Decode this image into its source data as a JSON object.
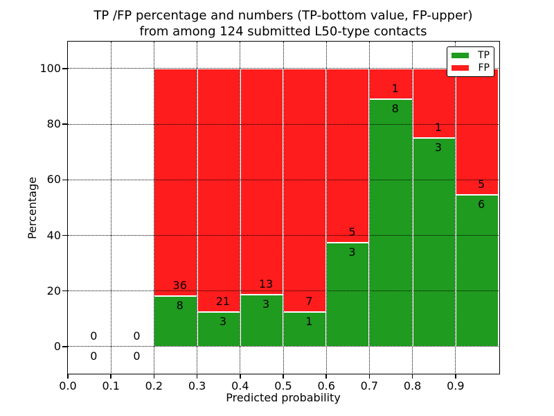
{
  "chart_data": {
    "type": "bar",
    "stacked": true,
    "title_line1": "TP /FP percentage and numbers (TP-bottom value, FP-upper)",
    "title_line2": "from among 124 submitted L50-type contacts",
    "xlabel": "Predicted probability",
    "ylabel": "Percentage",
    "xlim": [
      0.0,
      1.0
    ],
    "ylim": [
      -9.5,
      109.7
    ],
    "x_tick_values": [
      0.0,
      0.1,
      0.2,
      0.3,
      0.4,
      0.5,
      0.6,
      0.7,
      0.8,
      0.9
    ],
    "x_tick_labels": [
      "0.0",
      "0.1",
      "0.2",
      "0.3",
      "0.4",
      "0.5",
      "0.6",
      "0.7",
      "0.8",
      "0.9"
    ],
    "y_tick_values": [
      0,
      20,
      40,
      60,
      80,
      100
    ],
    "y_tick_labels": [
      "0",
      "20",
      "40",
      "60",
      "80",
      "100"
    ],
    "grid": "dotted-both-axes-drawn-over-bars",
    "legend_position": "upper-right",
    "legend": [
      {
        "label": "TP",
        "color": "#1f9b1f"
      },
      {
        "label": "FP",
        "color": "#ff1c1c"
      }
    ],
    "colors": {
      "tp": "#1f9b1f",
      "fp": "#ff1c1c",
      "bar_edge": "#ffffff",
      "axis": "#000000",
      "text": "#000000",
      "background": "#ffffff"
    },
    "bins": [
      {
        "x_range": [
          0.0,
          0.1
        ],
        "tp_count": 0,
        "fp_count": 0,
        "tp_percent": 0
      },
      {
        "x_range": [
          0.1,
          0.2
        ],
        "tp_count": 0,
        "fp_count": 0,
        "tp_percent": 0
      },
      {
        "x_range": [
          0.2,
          0.3
        ],
        "tp_count": 8,
        "fp_count": 36,
        "tp_percent": 18.2
      },
      {
        "x_range": [
          0.3,
          0.4
        ],
        "tp_count": 3,
        "fp_count": 21,
        "tp_percent": 12.5
      },
      {
        "x_range": [
          0.4,
          0.5
        ],
        "tp_count": 3,
        "fp_count": 13,
        "tp_percent": 18.8
      },
      {
        "x_range": [
          0.5,
          0.6
        ],
        "tp_count": 1,
        "fp_count": 7,
        "tp_percent": 12.5
      },
      {
        "x_range": [
          0.6,
          0.7
        ],
        "tp_count": 3,
        "fp_count": 5,
        "tp_percent": 37.5
      },
      {
        "x_range": [
          0.7,
          0.8
        ],
        "tp_count": 8,
        "fp_count": 1,
        "tp_percent": 88.9
      },
      {
        "x_range": [
          0.8,
          0.9
        ],
        "tp_count": 3,
        "fp_count": 1,
        "tp_percent": 75.0
      },
      {
        "x_range": [
          0.9,
          1.0
        ],
        "tp_count": 6,
        "fp_count": 5,
        "tp_percent": 54.5
      }
    ]
  }
}
